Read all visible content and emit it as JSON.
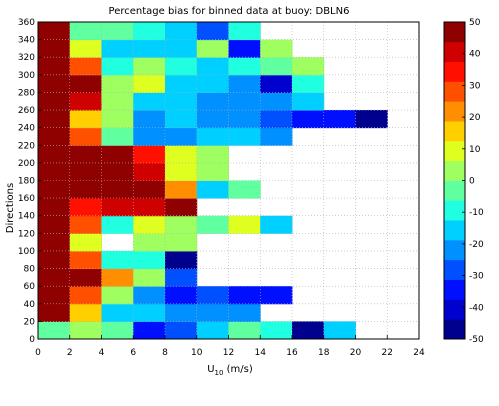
{
  "chart_data": {
    "type": "heatmap",
    "title": "Percentage bias for binned data at buoy: DBLN6",
    "xlabel_main": "U",
    "xlabel_sub": "10",
    "xlabel_unit": " (m/s)",
    "ylabel": "Directions",
    "xlim": [
      0,
      24
    ],
    "ylim": [
      0,
      360
    ],
    "x_ticks": [
      0,
      2,
      4,
      6,
      8,
      10,
      12,
      14,
      16,
      18,
      20,
      22,
      24
    ],
    "y_ticks": [
      0,
      20,
      40,
      60,
      80,
      100,
      120,
      140,
      160,
      180,
      200,
      220,
      240,
      260,
      280,
      300,
      320,
      340,
      360
    ],
    "x_bin_edges": [
      0,
      2,
      4,
      6,
      8,
      10,
      12,
      14,
      16,
      18,
      20,
      22
    ],
    "y_bin_edges": [
      0,
      20,
      40,
      60,
      80,
      100,
      120,
      140,
      160,
      180,
      200,
      220,
      240,
      260,
      280,
      300,
      320,
      340,
      360
    ],
    "grid": "dotted",
    "colorbar": {
      "min": -50,
      "max": 50,
      "ticks": [
        50,
        40,
        30,
        20,
        10,
        0,
        -10,
        -20,
        -30,
        -40,
        -50
      ],
      "colors": [
        "#00008f",
        "#0000cf",
        "#0010ff",
        "#0050ff",
        "#0090ff",
        "#00d0ff",
        "#20ffdf",
        "#60ff9f",
        "#9fff60",
        "#dfff20",
        "#ffcf00",
        "#ff8f00",
        "#ff5000",
        "#ff1000",
        "#cf0000",
        "#8f0000"
      ]
    },
    "rows": [
      {
        "dir": [
          0,
          20
        ],
        "values": [
          -2,
          0,
          -5,
          -35,
          -30,
          -15,
          -5,
          -8,
          -45,
          -18,
          null
        ]
      },
      {
        "dir": [
          20,
          40
        ],
        "values": [
          50,
          18,
          -18,
          -18,
          -22,
          -20,
          -20,
          null,
          null,
          null,
          null
        ]
      },
      {
        "dir": [
          40,
          60
        ],
        "values": [
          50,
          28,
          4,
          -20,
          -35,
          -28,
          -35,
          -35,
          null,
          null,
          null
        ]
      },
      {
        "dir": [
          60,
          80
        ],
        "values": [
          50,
          50,
          20,
          0,
          -28,
          null,
          null,
          null,
          null,
          null,
          null
        ]
      },
      {
        "dir": [
          80,
          100
        ],
        "values": [
          50,
          30,
          -10,
          -10,
          -50,
          null,
          null,
          null,
          null,
          null,
          null
        ]
      },
      {
        "dir": [
          100,
          120
        ],
        "values": [
          50,
          12,
          null,
          3,
          3,
          null,
          null,
          null,
          null,
          null,
          null
        ]
      },
      {
        "dir": [
          120,
          140
        ],
        "values": [
          50,
          30,
          -12,
          8,
          5,
          -3,
          10,
          -15,
          null,
          null,
          null
        ]
      },
      {
        "dir": [
          140,
          160
        ],
        "values": [
          50,
          35,
          40,
          40,
          50,
          null,
          null,
          null,
          null,
          null,
          null
        ]
      },
      {
        "dir": [
          160,
          180
        ],
        "values": [
          50,
          50,
          50,
          50,
          20,
          -15,
          -5,
          null,
          null,
          null,
          null
        ]
      },
      {
        "dir": [
          180,
          200
        ],
        "values": [
          50,
          50,
          50,
          40,
          12,
          0,
          null,
          null,
          null,
          null,
          null
        ]
      },
      {
        "dir": [
          200,
          220
        ],
        "values": [
          50,
          50,
          50,
          35,
          10,
          5,
          null,
          null,
          null,
          null,
          null
        ]
      },
      {
        "dir": [
          220,
          240
        ],
        "values": [
          50,
          30,
          -5,
          -22,
          -22,
          -18,
          -18,
          -20,
          null,
          null,
          null
        ]
      },
      {
        "dir": [
          240,
          260
        ],
        "values": [
          50,
          18,
          3,
          -25,
          -15,
          -25,
          -25,
          -30,
          -32,
          -35,
          -45
        ]
      },
      {
        "dir": [
          260,
          280
        ],
        "values": [
          50,
          40,
          5,
          -15,
          -15,
          -20,
          -20,
          -20,
          -15,
          null,
          null
        ]
      },
      {
        "dir": [
          280,
          300
        ],
        "values": [
          50,
          45,
          5,
          12,
          -15,
          -18,
          -20,
          -40,
          -12,
          null,
          null
        ]
      },
      {
        "dir": [
          300,
          320
        ],
        "values": [
          50,
          30,
          -12,
          5,
          -10,
          -18,
          -10,
          -5,
          0,
          null,
          null
        ]
      },
      {
        "dir": [
          320,
          340
        ],
        "values": [
          50,
          10,
          -15,
          -15,
          -15,
          0,
          -35,
          5,
          null,
          null,
          null
        ]
      },
      {
        "dir": [
          340,
          360
        ],
        "values": [
          50,
          -5,
          -5,
          -8,
          -15,
          -30,
          -10,
          null,
          null,
          null,
          null
        ]
      }
    ]
  }
}
